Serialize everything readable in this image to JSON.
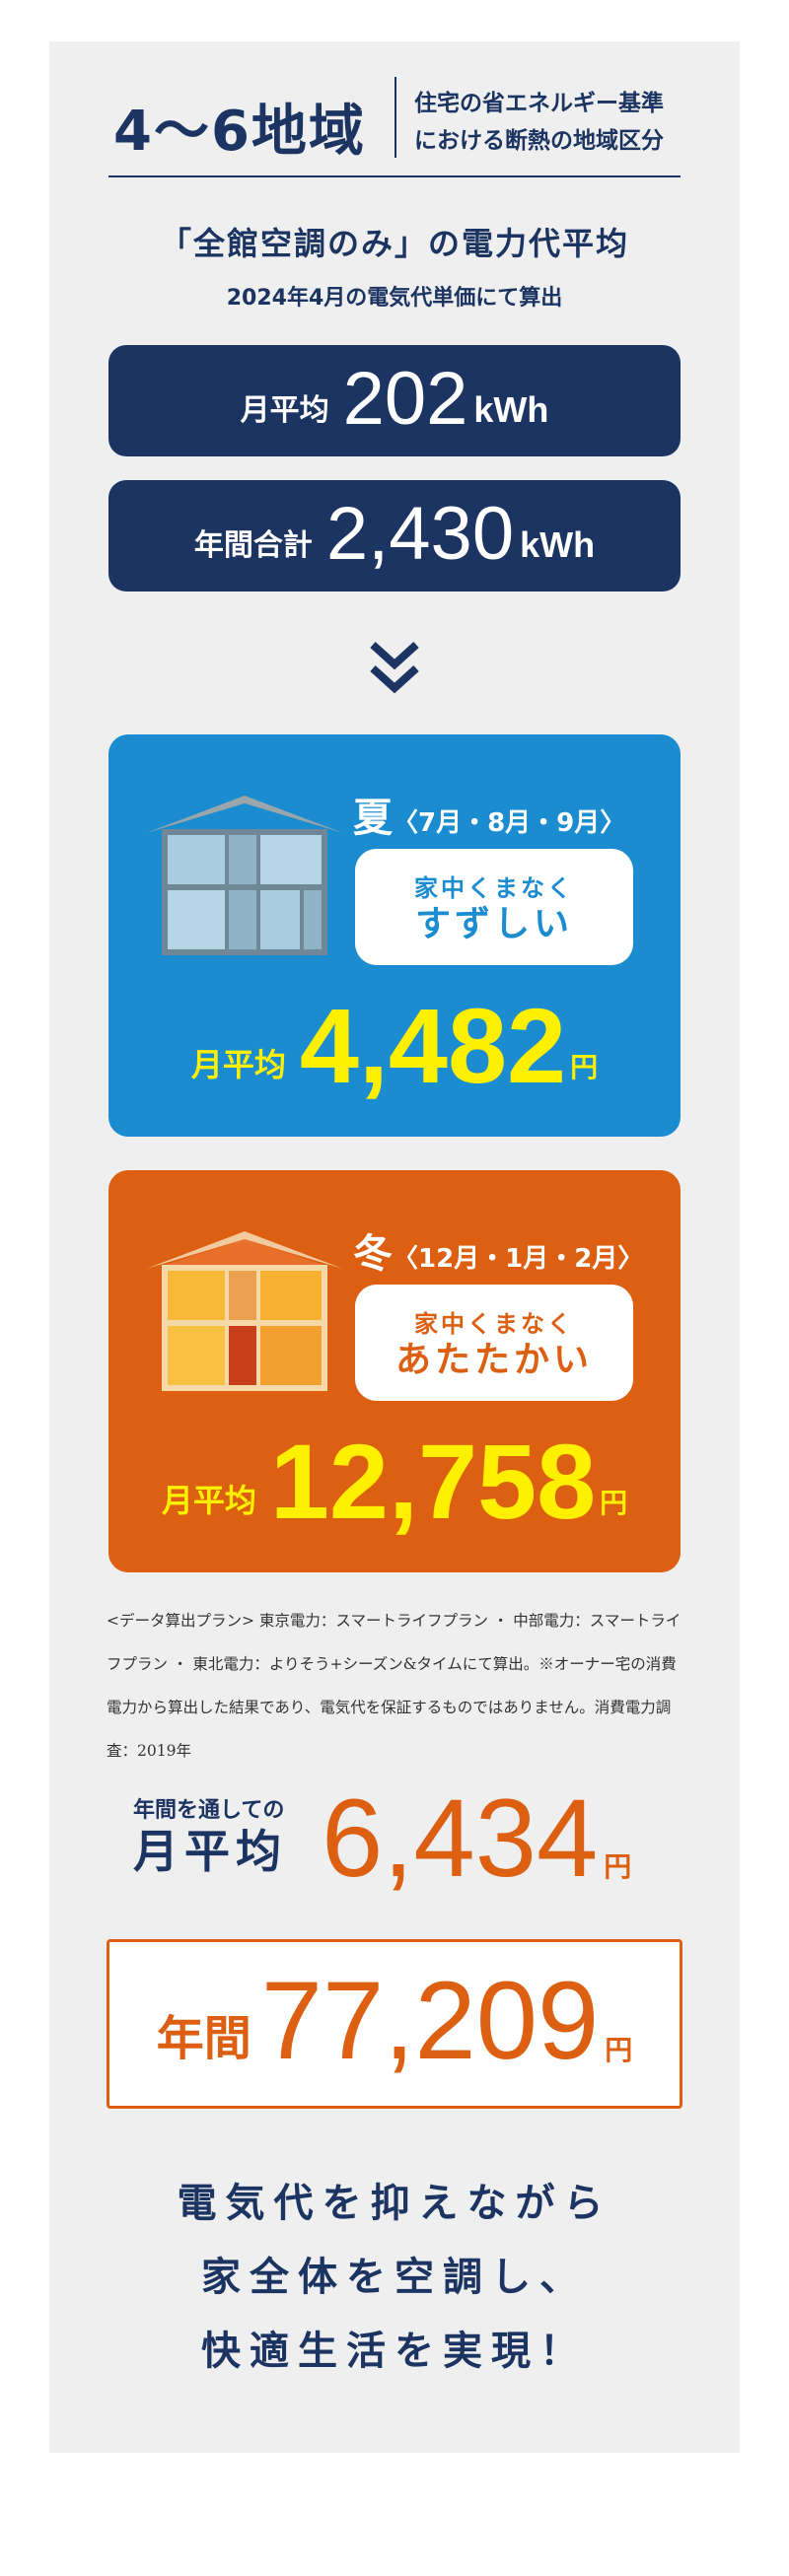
{
  "header": {
    "region": "4～6地域",
    "description": [
      "住宅の省エネルギー基準",
      "における断熱の地域区分"
    ]
  },
  "title": "「全館空調のみ」の電力代平均",
  "subtitle": "2024年4月の電気代単価にて算出",
  "usage": [
    {
      "label": "月平均",
      "value": "202",
      "unit": "kWh"
    },
    {
      "label": "年間合計",
      "value": "2,430",
      "unit": "kWh"
    }
  ],
  "colors": {
    "navy": "#1b3462",
    "summer": "#1a8ccf",
    "winter": "#dc5f12",
    "yellow": "#fff000",
    "panel": "#efefef"
  },
  "seasons": [
    {
      "season": "夏",
      "months": "〈7月・8月・9月〉",
      "tag_line1": "家中くまなく",
      "tag_line2": "すずしい",
      "price_label": "月平均",
      "price": "4,482",
      "unit": "円",
      "icon": "cool-house-illustration"
    },
    {
      "season": "冬",
      "months": "〈12月・1月・2月〉",
      "tag_line1": "家中くまなく",
      "tag_line2": "あたたかい",
      "price_label": "月平均",
      "price": "12,758",
      "unit": "円",
      "icon": "warm-house-illustration"
    }
  ],
  "note": "<データ算出プラン> 東京電力：スマートライフプラン ・ 中部電力：スマートライフプラン ・ 東北電力：よりそう+シーズン&タイムにて算出。※オーナー宅の消費電力から算出した結果であり、電気代を保証するものではありません。消費電力調査：2019年",
  "annual_avg": {
    "label1": "年間を通しての",
    "label2": "月平均",
    "value": "6,434",
    "unit": "円"
  },
  "annual_total": {
    "label": "年間",
    "value": "77,209",
    "unit": "円"
  },
  "closing": [
    "電気代を抑えながら",
    "家全体を空調し、",
    "快適生活を実現！"
  ]
}
